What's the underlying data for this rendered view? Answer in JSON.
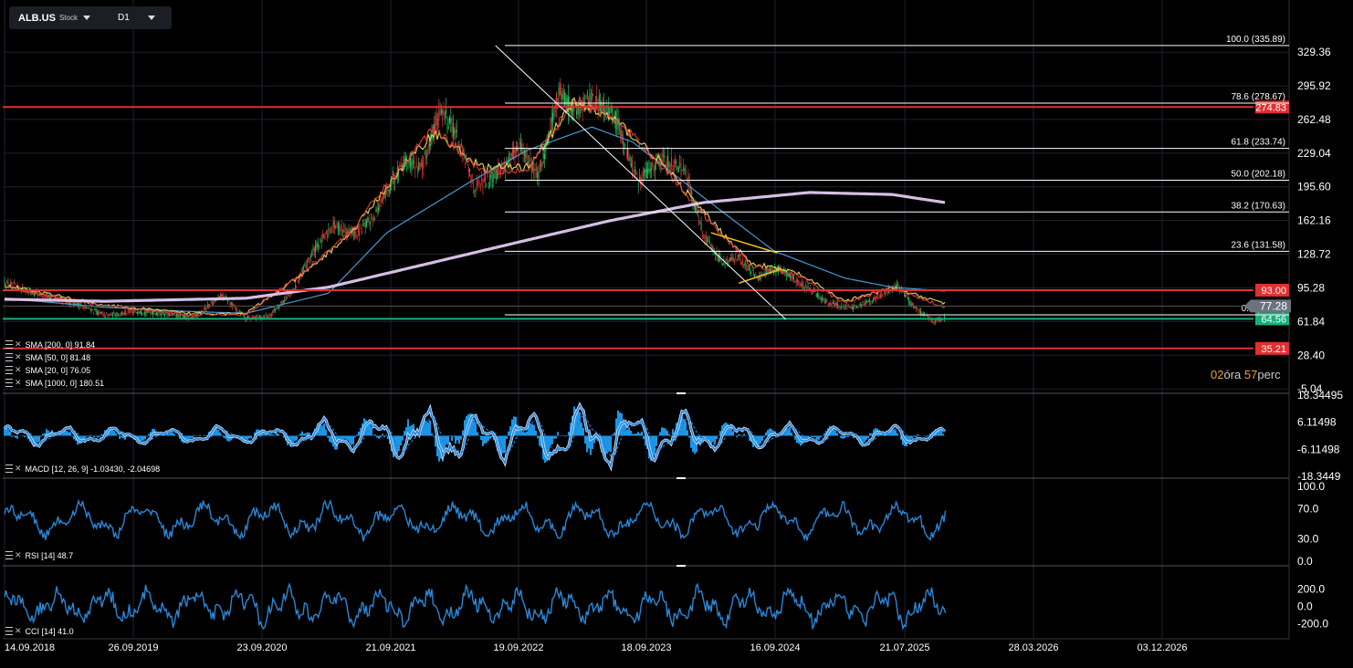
{
  "header": {
    "symbol": "ALB.US",
    "type": "Stock",
    "timeframe": "D1"
  },
  "countdown": {
    "hours": "02",
    "hours_label": "óra",
    "minutes": "57",
    "minutes_label": "perc"
  },
  "chart_data": {
    "type": "line",
    "title": "",
    "price_axis_ticks": [
      "329.36",
      "295.92",
      "262.48",
      "229.04",
      "195.60",
      "162.16",
      "128.72",
      "95.28",
      "61.84",
      "28.40",
      "-5.04"
    ],
    "x_tick_labels": [
      "14.09.2018",
      "26.09.2019",
      "23.09.2020",
      "21.09.2021",
      "19.09.2022",
      "18.09.2023",
      "16.09.2024",
      "21.07.2025",
      "28.03.2026",
      "03.12.2026"
    ],
    "current_price": "77.28",
    "price_lines": [
      {
        "label": "274.83",
        "value": 274.83,
        "color": "#e03030"
      },
      {
        "label": "93.00",
        "value": 93.0,
        "color": "#e03030"
      },
      {
        "label": "64.56",
        "value": 64.56,
        "color": "#16b07a"
      },
      {
        "label": "35.21",
        "value": 35.21,
        "color": "#e03030"
      }
    ],
    "fibonacci": [
      {
        "label": "100.0 (335.89)",
        "value": 335.89
      },
      {
        "label": "78.6 (278.67)",
        "value": 278.67
      },
      {
        "label": "61.8 (233.74)",
        "value": 233.74
      },
      {
        "label": "50.0 (202.18)",
        "value": 202.18
      },
      {
        "label": "38.2 (170.63)",
        "value": 170.63
      },
      {
        "label": "23.6 (131.58)",
        "value": 131.58
      },
      {
        "label": "0.0 (68.47)",
        "value": 68.47
      }
    ],
    "price_keypoints": {
      "dates": [
        "2018-09-14",
        "2018-12-20",
        "2019-03-15",
        "2019-06-01",
        "2019-09-01",
        "2019-12-01",
        "2020-01-15",
        "2020-04-01",
        "2020-06-01",
        "2020-08-01",
        "2020-10-01",
        "2020-11-20",
        "2021-01-15",
        "2021-03-15",
        "2021-05-01",
        "2021-07-15",
        "2021-09-01",
        "2021-10-20",
        "2021-12-01",
        "2022-01-15",
        "2022-03-15",
        "2022-05-15",
        "2022-07-01",
        "2022-08-20",
        "2022-10-01",
        "2022-11-15",
        "2023-01-15",
        "2023-03-15",
        "2023-05-15",
        "2023-07-15",
        "2023-09-01",
        "2023-10-20",
        "2023-12-01",
        "2024-01-20",
        "2024-03-15",
        "2024-05-15",
        "2024-07-20",
        "2024-09-15",
        "2024-11-20",
        "2025-01-15",
        "2025-03-01",
        "2025-04-20",
        "2025-05-20"
      ],
      "values": [
        100,
        88,
        80,
        68,
        72,
        68,
        66,
        88,
        65,
        68,
        92,
        130,
        158,
        148,
        168,
        222,
        215,
        275,
        245,
        195,
        210,
        235,
        205,
        290,
        270,
        285,
        265,
        200,
        225,
        210,
        148,
        120,
        125,
        105,
        115,
        98,
        80,
        75,
        85,
        98,
        75,
        62,
        66
      ]
    },
    "sma_keypoints": [
      {
        "name": "SMA [200, 0]",
        "value": "91.84",
        "color": "#4fa8e8",
        "dates": [
          "2018-09-14",
          "2019-06-01",
          "2020-01-01",
          "2020-06-01",
          "2021-01-01",
          "2021-06-01",
          "2022-01-01",
          "2022-06-01",
          "2022-11-15",
          "2023-03-01",
          "2023-09-01",
          "2024-03-01",
          "2024-09-01",
          "2025-01-01",
          "2025-05-20"
        ],
        "values": [
          85,
          76,
          72,
          70,
          90,
          150,
          200,
          232,
          255,
          240,
          185,
          132,
          105,
          96,
          92
        ]
      },
      {
        "name": "SMA [50, 0]",
        "value": "81.48",
        "color": "#e8e060",
        "dates": [
          "2018-09-14",
          "2019-06-01",
          "2020-01-01",
          "2020-06-01",
          "2020-11-01",
          "2021-03-01",
          "2021-07-01",
          "2021-10-01",
          "2022-02-01",
          "2022-06-01",
          "2022-10-01",
          "2023-01-15",
          "2023-05-01",
          "2023-09-01",
          "2024-01-01",
          "2024-05-01",
          "2024-09-01",
          "2025-01-01",
          "2025-05-20"
        ],
        "values": [
          98,
          78,
          70,
          70,
          110,
          150,
          210,
          250,
          215,
          215,
          280,
          262,
          225,
          170,
          120,
          110,
          82,
          95,
          80
        ]
      },
      {
        "name": "SMA [20, 0]",
        "value": "76.05",
        "color": "#e04040",
        "dates": [
          "2018-09-14",
          "2019-06-01",
          "2020-01-01",
          "2020-06-01",
          "2020-11-01",
          "2021-03-01",
          "2021-07-01",
          "2021-10-01",
          "2022-02-01",
          "2022-06-01",
          "2022-10-01",
          "2023-01-15",
          "2023-05-01",
          "2023-09-01",
          "2024-01-01",
          "2024-05-01",
          "2024-09-01",
          "2025-01-01",
          "2025-05-20"
        ],
        "values": [
          96,
          77,
          69,
          69,
          112,
          152,
          212,
          255,
          212,
          212,
          282,
          262,
          223,
          168,
          118,
          108,
          80,
          96,
          76
        ]
      },
      {
        "name": "SMA [1000, 0]",
        "value": "180.51",
        "color": "#e0c8f0",
        "dates": [
          "2018-09-14",
          "2019-06-01",
          "2020-06-01",
          "2021-01-01",
          "2021-09-01",
          "2022-05-01",
          "2023-01-01",
          "2023-09-01",
          "2024-06-01",
          "2025-01-01",
          "2025-05-20"
        ],
        "values": [
          84,
          82,
          85,
          96,
          118,
          140,
          162,
          180,
          190,
          188,
          180
        ]
      }
    ],
    "macd": {
      "name": "MACD",
      "params": "[12, 26, 9]",
      "value": "-1.03430, -2.04698",
      "ticks": [
        "18.34495",
        "6.11498",
        "-6.11498",
        "-18.3449"
      ]
    },
    "rsi": {
      "name": "RSI",
      "params": "[14]",
      "value": "48.7",
      "ticks": [
        "100.0",
        "70.0",
        "30.0",
        "0.0"
      ]
    },
    "cci": {
      "name": "CCI",
      "params": "[14]",
      "value": "41.0",
      "ticks": [
        "200.0",
        "0.0",
        "-200.0"
      ]
    }
  }
}
